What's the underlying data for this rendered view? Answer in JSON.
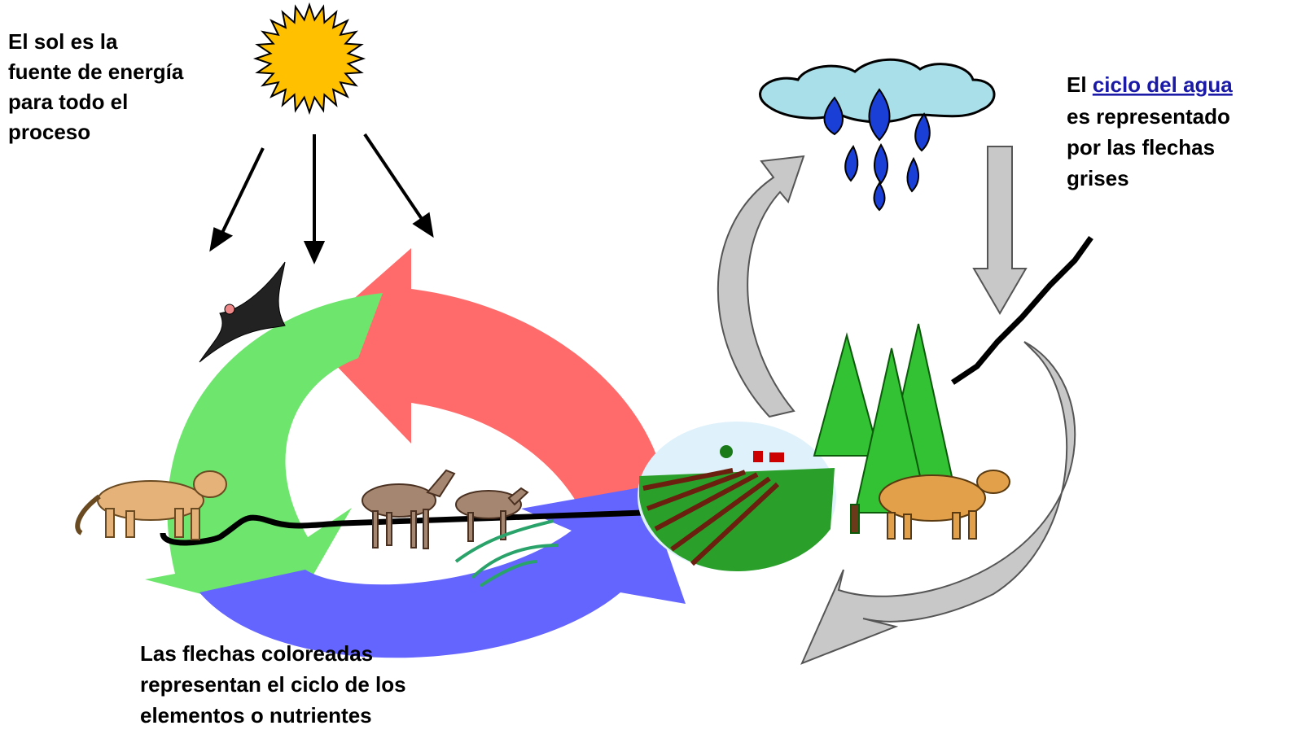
{
  "sun_note": {
    "lines": [
      "El sol es la",
      "fuente de energía",
      "para todo el",
      "proceso"
    ]
  },
  "water_note": {
    "prefix": "El",
    "link": "ciclo del agua",
    "lines": [
      "es representado",
      "por las flechas",
      "grises"
    ]
  },
  "nutrient_note": {
    "lines": [
      "Las flechas coloreadas",
      "representan el ciclo de los",
      "elementos o nutrientes"
    ]
  }
}
